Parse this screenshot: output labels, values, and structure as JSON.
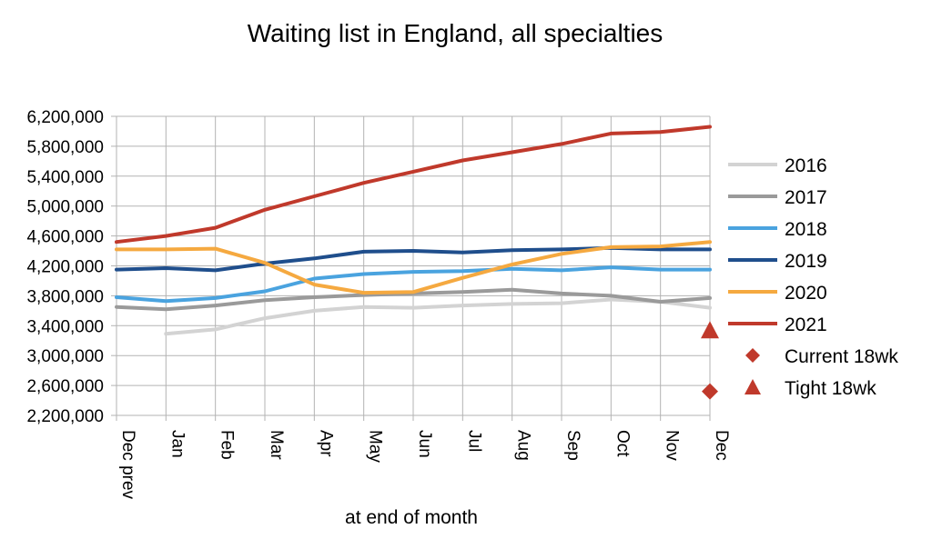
{
  "chart_data": {
    "type": "line",
    "title": "Waiting list in England, all specialties",
    "xlabel": "at end of month",
    "ylabel": "",
    "ylim": [
      2200000,
      6200000
    ],
    "yticks": [
      2200000,
      2600000,
      3000000,
      3400000,
      3800000,
      4200000,
      4600000,
      5000000,
      5400000,
      5800000,
      6200000
    ],
    "ytick_labels": [
      "2,200,000",
      "2,600,000",
      "3,000,000",
      "3,400,000",
      "3,800,000",
      "4,200,000",
      "4,600,000",
      "5,000,000",
      "5,400,000",
      "5,800,000",
      "6,200,000"
    ],
    "categories": [
      "Dec prev",
      "Jan",
      "Feb",
      "Mar",
      "Apr",
      "May",
      "Jun",
      "Jul",
      "Aug",
      "Sep",
      "Oct",
      "Nov",
      "Dec"
    ],
    "grid": true,
    "legend_position": "right",
    "series": [
      {
        "name": "2016",
        "color": "#d3d3d3",
        "values": [
          null,
          3290000,
          3350000,
          3500000,
          3600000,
          3650000,
          3640000,
          3670000,
          3690000,
          3700000,
          3750000,
          3720000,
          3640000
        ]
      },
      {
        "name": "2017",
        "color": "#9a9a9a",
        "values": [
          3650000,
          3620000,
          3670000,
          3740000,
          3780000,
          3810000,
          3830000,
          3850000,
          3880000,
          3830000,
          3800000,
          3720000,
          3770000
        ]
      },
      {
        "name": "2018",
        "color": "#4aa3df",
        "values": [
          3780000,
          3730000,
          3770000,
          3860000,
          4030000,
          4090000,
          4120000,
          4130000,
          4160000,
          4140000,
          4180000,
          4150000,
          4150000
        ]
      },
      {
        "name": "2019",
        "color": "#1f4e8c",
        "values": [
          4150000,
          4170000,
          4140000,
          4230000,
          4300000,
          4390000,
          4400000,
          4380000,
          4410000,
          4420000,
          4440000,
          4420000,
          4420000
        ]
      },
      {
        "name": "2020",
        "color": "#f5a940",
        "values": [
          4420000,
          4420000,
          4430000,
          4240000,
          3950000,
          3840000,
          3850000,
          4040000,
          4220000,
          4360000,
          4450000,
          4460000,
          4520000
        ]
      },
      {
        "name": "2021",
        "color": "#c0392b",
        "values": [
          4520000,
          4600000,
          4710000,
          4950000,
          5130000,
          5310000,
          5460000,
          5610000,
          5720000,
          5830000,
          5970000,
          5990000,
          6060000
        ]
      }
    ],
    "markers": [
      {
        "name": "Current 18wk",
        "shape": "diamond",
        "color": "#c0392b",
        "category": "Dec",
        "value": 2520000
      },
      {
        "name": "Tight 18wk",
        "shape": "triangle",
        "color": "#c0392b",
        "category": "Dec",
        "value": 3340000
      }
    ]
  }
}
